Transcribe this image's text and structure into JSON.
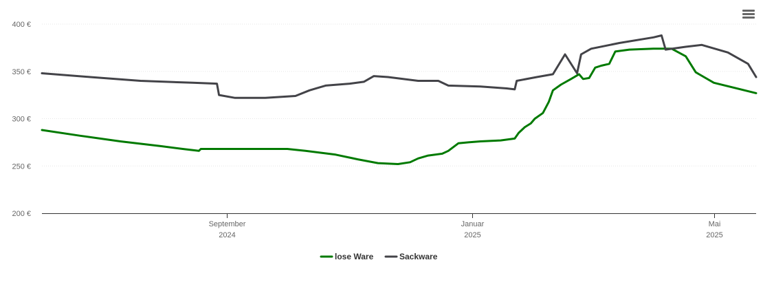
{
  "chart_data": {
    "type": "line",
    "title": "",
    "xlabel": "",
    "ylabel": "",
    "ylim": [
      200,
      400
    ],
    "xlim": [
      "2024-06-01",
      "2025-05-22"
    ],
    "y_ticks": [
      {
        "value": 200,
        "label": "200 €"
      },
      {
        "value": 250,
        "label": "250 €"
      },
      {
        "value": 300,
        "label": "300 €"
      },
      {
        "value": 350,
        "label": "350 €"
      },
      {
        "value": 400,
        "label": "400 €"
      }
    ],
    "x_ticks": [
      {
        "date": "2024-09-01",
        "line1": "September",
        "line2": "2024"
      },
      {
        "date": "2025-01-01",
        "line1": "Januar",
        "line2": "2025"
      },
      {
        "date": "2025-05-01",
        "line1": "Mai",
        "line2": "2025"
      }
    ],
    "grid": true,
    "legend_position": "bottom-center",
    "series": [
      {
        "name": "lose Ware",
        "color": "#007a00",
        "points": [
          [
            "2024-06-01",
            288
          ],
          [
            "2024-06-20",
            282
          ],
          [
            "2024-07-10",
            276
          ],
          [
            "2024-07-30",
            271
          ],
          [
            "2024-08-10",
            268
          ],
          [
            "2024-08-18",
            266
          ],
          [
            "2024-08-19",
            268
          ],
          [
            "2024-09-01",
            268
          ],
          [
            "2024-09-20",
            268
          ],
          [
            "2024-10-01",
            268
          ],
          [
            "2024-10-10",
            266
          ],
          [
            "2024-10-25",
            262
          ],
          [
            "2024-11-05",
            257
          ],
          [
            "2024-11-15",
            253
          ],
          [
            "2024-11-25",
            252
          ],
          [
            "2024-12-01",
            254
          ],
          [
            "2024-12-05",
            258
          ],
          [
            "2024-12-10",
            261
          ],
          [
            "2024-12-17",
            263
          ],
          [
            "2024-12-20",
            266
          ],
          [
            "2024-12-25",
            274
          ],
          [
            "2024-12-30",
            275
          ],
          [
            "2025-01-05",
            276
          ],
          [
            "2025-01-15",
            277
          ],
          [
            "2025-01-22",
            279
          ],
          [
            "2025-01-24",
            285
          ],
          [
            "2025-01-27",
            291
          ],
          [
            "2025-01-30",
            295
          ],
          [
            "2025-02-01",
            300
          ],
          [
            "2025-02-05",
            306
          ],
          [
            "2025-02-08",
            318
          ],
          [
            "2025-02-10",
            330
          ],
          [
            "2025-02-14",
            336
          ],
          [
            "2025-02-19",
            342
          ],
          [
            "2025-02-23",
            347
          ],
          [
            "2025-02-25",
            342
          ],
          [
            "2025-02-28",
            343
          ],
          [
            "2025-03-03",
            354
          ],
          [
            "2025-03-06",
            356
          ],
          [
            "2025-03-10",
            358
          ],
          [
            "2025-03-13",
            371
          ],
          [
            "2025-03-20",
            373
          ],
          [
            "2025-04-01",
            374
          ],
          [
            "2025-04-10",
            374
          ],
          [
            "2025-04-17",
            366
          ],
          [
            "2025-04-22",
            349
          ],
          [
            "2025-05-01",
            338
          ],
          [
            "2025-05-22",
            327
          ]
        ]
      },
      {
        "name": "Sackware",
        "color": "#434348",
        "points": [
          [
            "2024-06-01",
            348
          ],
          [
            "2024-06-25",
            344
          ],
          [
            "2024-07-20",
            340
          ],
          [
            "2024-08-15",
            338
          ],
          [
            "2024-08-27",
            337
          ],
          [
            "2024-08-28",
            325
          ],
          [
            "2024-09-05",
            322
          ],
          [
            "2024-09-20",
            322
          ],
          [
            "2024-10-05",
            324
          ],
          [
            "2024-10-12",
            330
          ],
          [
            "2024-10-20",
            335
          ],
          [
            "2024-11-01",
            337
          ],
          [
            "2024-11-08",
            339
          ],
          [
            "2024-11-13",
            345
          ],
          [
            "2024-11-20",
            344
          ],
          [
            "2024-12-05",
            340
          ],
          [
            "2024-12-15",
            340
          ],
          [
            "2024-12-20",
            335
          ],
          [
            "2025-01-05",
            334
          ],
          [
            "2025-01-18",
            332
          ],
          [
            "2025-01-22",
            331
          ],
          [
            "2025-01-23",
            340
          ],
          [
            "2025-02-02",
            344
          ],
          [
            "2025-02-10",
            347
          ],
          [
            "2025-02-16",
            368
          ],
          [
            "2025-02-22",
            348
          ],
          [
            "2025-02-24",
            368
          ],
          [
            "2025-03-01",
            374
          ],
          [
            "2025-03-15",
            380
          ],
          [
            "2025-04-01",
            386
          ],
          [
            "2025-04-05",
            388
          ],
          [
            "2025-04-07",
            373
          ],
          [
            "2025-04-17",
            376
          ],
          [
            "2025-04-25",
            378
          ],
          [
            "2025-05-08",
            370
          ],
          [
            "2025-05-18",
            358
          ],
          [
            "2025-05-22",
            344
          ]
        ]
      }
    ]
  }
}
